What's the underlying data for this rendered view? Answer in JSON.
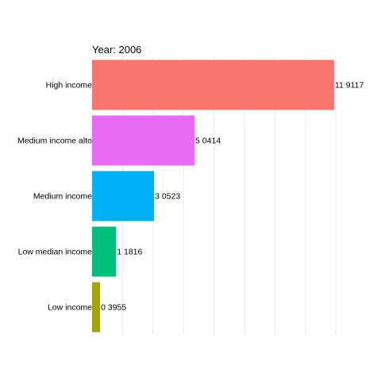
{
  "chart_data": {
    "type": "bar",
    "orientation": "horizontal",
    "title": "Year: 2006",
    "categories": [
      "High income",
      "Medium income alto",
      "Medium income",
      "Low median income",
      "Low income"
    ],
    "values": [
      11.9117,
      5.0414,
      3.0523,
      1.1816,
      0.3955
    ],
    "value_labels": [
      "11 9117",
      "5 0414",
      "3 0523",
      "1 1816",
      "0 3955"
    ],
    "colors": [
      "#F8766D",
      "#E76BF3",
      "#00B0F6",
      "#00BF7D",
      "#A3A500"
    ],
    "xlim": [
      0,
      12.5
    ],
    "grid": true,
    "legend": "none"
  }
}
